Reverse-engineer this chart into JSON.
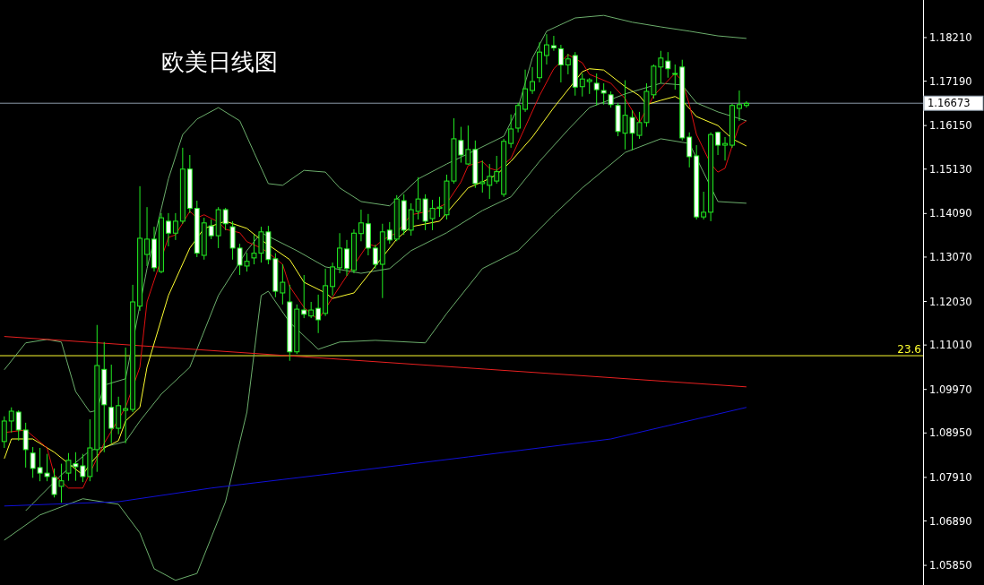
{
  "chart_data": {
    "type": "candlestick",
    "title": "欧美日线图",
    "color": "#22ee22",
    "categories": [
      null,
      null,
      null,
      null,
      null,
      null,
      null,
      null,
      null,
      null,
      null,
      null,
      null,
      null,
      null,
      null,
      null,
      null,
      null,
      null,
      null,
      null,
      null,
      null,
      null,
      null,
      null,
      null,
      null,
      null,
      null,
      null,
      null,
      null,
      null,
      null,
      null,
      null,
      null,
      null,
      null,
      null,
      null,
      null,
      null,
      null,
      null,
      null,
      null,
      null,
      null,
      null,
      null,
      null,
      null,
      null,
      null,
      null,
      null,
      null,
      null,
      null,
      null,
      null,
      null,
      null,
      null,
      null,
      null,
      null,
      null,
      null,
      null,
      null,
      null,
      null,
      null,
      null,
      null,
      null,
      null,
      null,
      null,
      null,
      null,
      null,
      null,
      null,
      null,
      null,
      null,
      null,
      null,
      null,
      null,
      null,
      null,
      null,
      null,
      null,
      null,
      null,
      null,
      null,
      null
    ],
    "ohlc": [
      [
        1.0875,
        1.0934,
        1.086,
        1.0923
      ],
      [
        1.0923,
        1.0955,
        1.0896,
        1.0946
      ],
      [
        1.0944,
        1.0948,
        1.0877,
        1.0902
      ],
      [
        1.0902,
        1.0919,
        1.0814,
        1.0856
      ],
      [
        1.0848,
        1.0862,
        1.079,
        1.0812
      ],
      [
        1.0814,
        1.086,
        1.0782,
        1.0801
      ],
      [
        1.0801,
        1.0846,
        1.0782,
        1.0793
      ],
      [
        1.0791,
        1.0812,
        1.0744,
        1.0751
      ],
      [
        1.077,
        1.0823,
        1.0732,
        1.0783
      ],
      [
        1.0801,
        1.0848,
        1.0783,
        1.0831
      ],
      [
        1.0823,
        1.085,
        1.0783,
        1.0816
      ],
      [
        1.0818,
        1.0846,
        1.078,
        1.0793
      ],
      [
        1.0793,
        1.0927,
        1.0782,
        1.086
      ],
      [
        1.0856,
        1.1148,
        1.0804,
        1.1053
      ],
      [
        1.1044,
        1.1108,
        1.085,
        1.0961
      ],
      [
        1.0955,
        1.1055,
        1.0871,
        1.0906
      ],
      [
        1.0906,
        1.098,
        1.0892,
        1.0959
      ],
      [
        1.0948,
        1.1095,
        1.0871,
        1.0952
      ],
      [
        1.095,
        1.1242,
        1.0944,
        1.1202
      ],
      [
        1.1192,
        1.1473,
        1.1181,
        1.1351
      ],
      [
        1.1313,
        1.1424,
        1.1286,
        1.1349
      ],
      [
        1.1349,
        1.1378,
        1.1273,
        1.1282
      ],
      [
        1.1273,
        1.141,
        1.1269,
        1.1399
      ],
      [
        1.1391,
        1.141,
        1.1332,
        1.1363
      ],
      [
        1.1363,
        1.141,
        1.1347,
        1.1391
      ],
      [
        1.1391,
        1.1563,
        1.1385,
        1.1513
      ],
      [
        1.1513,
        1.1546,
        1.141,
        1.1421
      ],
      [
        1.1421,
        1.1439,
        1.1307,
        1.1316
      ],
      [
        1.1311,
        1.1399,
        1.1301,
        1.1387
      ],
      [
        1.138,
        1.1395,
        1.1349,
        1.1357
      ],
      [
        1.1357,
        1.1424,
        1.1328,
        1.1418
      ],
      [
        1.1418,
        1.1422,
        1.137,
        1.1385
      ],
      [
        1.1378,
        1.1391,
        1.1301,
        1.1328
      ],
      [
        1.1328,
        1.1338,
        1.1265,
        1.1288
      ],
      [
        1.1286,
        1.1317,
        1.1273,
        1.1297
      ],
      [
        1.1305,
        1.1359,
        1.129,
        1.1316
      ],
      [
        1.1316,
        1.1378,
        1.1294,
        1.1366
      ],
      [
        1.1366,
        1.138,
        1.129,
        1.1301
      ],
      [
        1.1303,
        1.1316,
        1.1213,
        1.1227
      ],
      [
        1.1223,
        1.129,
        1.1196,
        1.1248
      ],
      [
        1.1202,
        1.1242,
        1.1064,
        1.1085
      ],
      [
        1.1085,
        1.1196,
        1.108,
        1.1185
      ],
      [
        1.1183,
        1.1265,
        1.1164,
        1.1173
      ],
      [
        1.1169,
        1.1202,
        1.1164,
        1.1183
      ],
      [
        1.1187,
        1.1219,
        1.1129,
        1.116
      ],
      [
        1.1175,
        1.128,
        1.1169,
        1.124
      ],
      [
        1.1238,
        1.1294,
        1.1217,
        1.1284
      ],
      [
        1.1282,
        1.1363,
        1.1269,
        1.1328
      ],
      [
        1.1326,
        1.1347,
        1.1263,
        1.128
      ],
      [
        1.1276,
        1.1372,
        1.1269,
        1.1363
      ],
      [
        1.1362,
        1.1418,
        1.1344,
        1.1387
      ],
      [
        1.1385,
        1.1408,
        1.1311,
        1.1328
      ],
      [
        1.1328,
        1.1336,
        1.128,
        1.129
      ],
      [
        1.129,
        1.1385,
        1.1211,
        1.1366
      ],
      [
        1.137,
        1.1389,
        1.1338,
        1.1347
      ],
      [
        1.1349,
        1.1452,
        1.1344,
        1.1443
      ],
      [
        1.1439,
        1.1454,
        1.1359,
        1.137
      ],
      [
        1.137,
        1.1433,
        1.1357,
        1.1418
      ],
      [
        1.1414,
        1.1494,
        1.1395,
        1.1443
      ],
      [
        1.1443,
        1.1454,
        1.137,
        1.1391
      ],
      [
        1.1397,
        1.1441,
        1.137,
        1.1421
      ],
      [
        1.1421,
        1.1448,
        1.1401,
        1.1424
      ],
      [
        1.1406,
        1.15,
        1.1395,
        1.1485
      ],
      [
        1.1485,
        1.1632,
        1.1479,
        1.1584
      ],
      [
        1.158,
        1.1612,
        1.1528,
        1.1546
      ],
      [
        1.1525,
        1.1615,
        1.1523,
        1.1559
      ],
      [
        1.1559,
        1.158,
        1.1469,
        1.1479
      ],
      [
        1.1479,
        1.1533,
        1.1458,
        1.1483
      ],
      [
        1.1475,
        1.1525,
        1.1443,
        1.1496
      ],
      [
        1.1485,
        1.1544,
        1.1479,
        1.1507
      ],
      [
        1.1454,
        1.1584,
        1.1448,
        1.1578
      ],
      [
        1.1573,
        1.1641,
        1.1563,
        1.1607
      ],
      [
        1.1609,
        1.1668,
        1.1599,
        1.1662
      ],
      [
        1.1653,
        1.1746,
        1.1647,
        1.1701
      ],
      [
        1.1697,
        1.1752,
        1.1689,
        1.1718
      ],
      [
        1.1727,
        1.181,
        1.1716,
        1.1787
      ],
      [
        1.1779,
        1.1829,
        1.1758,
        1.1804
      ],
      [
        1.1802,
        1.1825,
        1.179,
        1.1797
      ],
      [
        1.1795,
        1.1804,
        1.1716,
        1.1757
      ],
      [
        1.1757,
        1.1783,
        1.1735,
        1.1771
      ],
      [
        1.1779,
        1.1787,
        1.1685,
        1.1705
      ],
      [
        1.1706,
        1.1737,
        1.1683,
        1.1724
      ],
      [
        1.1718,
        1.1726,
        1.1689,
        1.1722
      ],
      [
        1.1714,
        1.1737,
        1.1662,
        1.1699
      ],
      [
        1.1697,
        1.1714,
        1.1664,
        1.1691
      ],
      [
        1.1687,
        1.1695,
        1.1657,
        1.1664
      ],
      [
        1.1662,
        1.1668,
        1.159,
        1.1601
      ],
      [
        1.1597,
        1.1721,
        1.1559,
        1.1639
      ],
      [
        1.1634,
        1.1651,
        1.1557,
        1.1597
      ],
      [
        1.1592,
        1.1647,
        1.1584,
        1.1622
      ],
      [
        1.1622,
        1.1714,
        1.1612,
        1.1695
      ],
      [
        1.1687,
        1.1758,
        1.1678,
        1.1754
      ],
      [
        1.1752,
        1.179,
        1.1714,
        1.1773
      ],
      [
        1.1766,
        1.1787,
        1.1727,
        1.1748
      ],
      [
        1.1737,
        1.1758,
        1.1699,
        1.1735
      ],
      [
        1.1752,
        1.1769,
        1.158,
        1.1586
      ],
      [
        1.1588,
        1.1599,
        1.1517,
        1.1542
      ],
      [
        1.1544,
        1.1569,
        1.1395,
        1.1401
      ],
      [
        1.1401,
        1.146,
        1.1395,
        1.1412
      ],
      [
        1.1412,
        1.1599,
        1.1391,
        1.1594
      ],
      [
        1.1599,
        1.1601,
        1.1546,
        1.1569
      ],
      [
        1.1569,
        1.1588,
        1.1533,
        1.1573
      ],
      [
        1.1569,
        1.1666,
        1.1563,
        1.1662
      ],
      [
        1.1655,
        1.1697,
        1.1626,
        1.1664
      ],
      [
        1.1662,
        1.1672,
        1.1657,
        1.1667
      ]
    ],
    "series": [
      {
        "type": "line",
        "color": "#6cae6c",
        "values": [
          1.1043,
          null,
          null,
          1.1106,
          null,
          null,
          1.1114,
          null,
          1.1108,
          null,
          1.0992,
          null,
          1.0944,
          1.0948,
          1.1007,
          null,
          null,
          1.1022,
          null,
          null,
          1.128,
          null,
          null,
          1.149,
          null,
          1.1594,
          null,
          1.163,
          null,
          null,
          1.1657,
          null,
          null,
          1.1626,
          null,
          1.1552,
          null,
          1.1479,
          null,
          1.1475,
          null,
          null,
          1.151,
          null,
          null,
          1.1506,
          null,
          1.1469,
          null,
          null,
          1.1437,
          null,
          null,
          null,
          1.1427,
          null,
          null,
          null,
          1.149,
          null,
          null,
          null,
          1.1525,
          null,
          null,
          null,
          1.1557,
          null,
          null,
          null,
          1.159,
          null,
          1.1657,
          null,
          1.1773,
          null,
          1.1836,
          null,
          null,
          null,
          1.1867,
          null,
          null,
          null,
          1.1873,
          null,
          null,
          null,
          1.1857,
          null,
          null,
          null,
          1.1846,
          null,
          null,
          null,
          1.1836,
          null,
          null,
          null,
          1.1825,
          null,
          null,
          null,
          1.1819
        ]
      },
      {
        "type": "line",
        "color": "#6cae6c",
        "values": [
          null,
          null,
          null,
          1.0713,
          null,
          null,
          null,
          null,
          1.0797,
          null,
          null,
          null,
          1.0854,
          null,
          null,
          null,
          null,
          1.0875,
          null,
          1.0923,
          null,
          null,
          1.0986,
          null,
          null,
          null,
          1.1049,
          null,
          null,
          null,
          1.1217,
          null,
          null,
          null,
          1.1322,
          null,
          1.1364,
          null,
          null,
          null,
          null,
          1.1322,
          null,
          null,
          null,
          1.1284,
          null,
          null,
          null,
          null,
          1.1269,
          null,
          null,
          null,
          1.128,
          null,
          null,
          1.1322,
          null,
          null,
          null,
          null,
          1.1364,
          null,
          null,
          null,
          null,
          1.1416,
          null,
          null,
          null,
          1.1448,
          null,
          null,
          null,
          1.1531,
          null,
          null,
          null,
          1.1605,
          null,
          null,
          1.1657,
          null,
          null,
          null,
          null,
          1.1689,
          null,
          null,
          null,
          null,
          1.1714,
          null,
          null,
          1.171,
          null,
          1.1668,
          null,
          null,
          1.1647,
          null,
          null,
          null,
          1.1626
        ]
      },
      {
        "type": "line",
        "color": "#6cae6c",
        "values": [
          1.0644,
          null,
          null,
          null,
          null,
          1.0703,
          null,
          null,
          null,
          null,
          null,
          1.0741,
          null,
          null,
          null,
          null,
          1.0728,
          null,
          null,
          1.0661,
          null,
          1.0577,
          null,
          null,
          1.055,
          null,
          null,
          1.0566,
          null,
          null,
          null,
          1.0734,
          null,
          null,
          1.0944,
          null,
          1.1217,
          1.1227,
          null,
          null,
          1.1154,
          null,
          null,
          null,
          1.1091,
          null,
          null,
          1.1108,
          null,
          null,
          null,
          null,
          1.1112,
          null,
          null,
          null,
          null,
          null,
          null,
          1.1106,
          null,
          null,
          1.1175,
          null,
          null,
          null,
          null,
          1.128,
          null,
          null,
          null,
          null,
          1.1322,
          null,
          null,
          null,
          null,
          1.1406,
          null,
          null,
          null,
          1.1469,
          null,
          null,
          null,
          null,
          null,
          1.1552,
          null,
          null,
          null,
          null,
          1.1584,
          null,
          null,
          null,
          1.1573,
          null,
          null,
          null,
          1.1437,
          null,
          null,
          null,
          1.1433
        ]
      },
      {
        "type": "line",
        "color": "#1010d8",
        "values": [
          1.0724,
          null,
          null,
          null,
          null,
          null,
          null,
          null,
          null,
          null,
          null,
          null,
          null,
          null,
          null,
          null,
          1.0734,
          null,
          null,
          null,
          null,
          null,
          null,
          null,
          null,
          null,
          null,
          null,
          null,
          1.0766,
          null,
          null,
          null,
          null,
          null,
          null,
          null,
          null,
          null,
          null,
          null,
          null,
          null,
          null,
          null,
          null,
          null,
          null,
          null,
          null,
          1.0808,
          null,
          null,
          null,
          null,
          null,
          null,
          null,
          null,
          null,
          null,
          null,
          null,
          null,
          null,
          1.0839,
          null,
          null,
          null,
          null,
          null,
          null,
          null,
          null,
          null,
          null,
          null,
          null,
          null,
          null,
          null,
          null,
          null,
          null,
          null,
          1.0881,
          null,
          null,
          null,
          null,
          null,
          null,
          null,
          null,
          null,
          null,
          null,
          null,
          null,
          null,
          null,
          null,
          null,
          null,
          1.0955
        ]
      },
      {
        "type": "line",
        "color": "#e82020",
        "values": [
          1.1121,
          null,
          null,
          null,
          null,
          null,
          null,
          null,
          null,
          null,
          null,
          null,
          null,
          null,
          null,
          null,
          null,
          null,
          null,
          null,
          null,
          null,
          null,
          null,
          null,
          null,
          null,
          null,
          null,
          null,
          null,
          null,
          null,
          null,
          null,
          null,
          null,
          null,
          null,
          null,
          null,
          null,
          null,
          null,
          null,
          null,
          null,
          null,
          null,
          null,
          null,
          null,
          null,
          null,
          null,
          null,
          null,
          null,
          null,
          null,
          null,
          null,
          null,
          null,
          null,
          null,
          null,
          null,
          null,
          null,
          null,
          null,
          null,
          null,
          null,
          null,
          null,
          null,
          null,
          null,
          null,
          null,
          null,
          null,
          null,
          null,
          null,
          null,
          null,
          null,
          null,
          null,
          null,
          null,
          null,
          null,
          null,
          null,
          null,
          null,
          null,
          null,
          null,
          null,
          1.1003
        ]
      },
      {
        "type": "line",
        "color": "#ffff30",
        "values": [
          1.0835,
          1.0881,
          null,
          null,
          1.0881,
          null,
          null,
          1.085,
          null,
          null,
          null,
          1.0797,
          1.0822,
          null,
          1.086,
          null,
          1.0877,
          1.0923,
          null,
          1.0955,
          1.1049,
          null,
          null,
          1.1217,
          null,
          null,
          1.1328,
          null,
          1.1374,
          null,
          1.1385,
          1.1391,
          null,
          null,
          1.1374,
          null,
          1.1347,
          null,
          null,
          null,
          1.1301,
          null,
          1.1248,
          null,
          null,
          1.1223,
          1.121,
          null,
          null,
          1.1223,
          null,
          null,
          1.1286,
          null,
          null,
          1.1349,
          null,
          1.1378,
          null,
          null,
          null,
          1.1391,
          null,
          null,
          null,
          1.1469,
          null,
          1.1483,
          null,
          1.15,
          null,
          1.1531,
          null,
          null,
          1.1588,
          null,
          null,
          1.1657,
          null,
          null,
          null,
          1.1741,
          1.1748,
          null,
          1.1745,
          null,
          null,
          1.1706,
          null,
          1.1685,
          1.1664,
          null,
          1.1674,
          null,
          1.1683,
          1.1674,
          null,
          1.1636,
          null,
          null,
          1.1615,
          null,
          1.1584,
          null,
          1.1567
        ]
      },
      {
        "type": "line",
        "color": "#e01010",
        "values": [
          1.0896,
          null,
          null,
          1.0902,
          null,
          null,
          1.086,
          1.0797,
          null,
          1.0766,
          null,
          1.0766,
          null,
          null,
          1.0871,
          null,
          null,
          1.0955,
          null,
          1.1049,
          1.1202,
          null,
          null,
          1.1353,
          1.1359,
          null,
          1.1414,
          1.1399,
          1.1406,
          null,
          1.1389,
          1.1372,
          null,
          1.1364,
          1.1343,
          null,
          1.1328,
          1.1317,
          null,
          1.129,
          1.1238,
          null,
          1.1189,
          null,
          1.116,
          null,
          null,
          1.1238,
          null,
          null,
          null,
          1.1338,
          1.1332,
          1.1347,
          null,
          1.1364,
          null,
          1.1406,
          null,
          null,
          1.1416,
          null,
          1.1433,
          null,
          1.1483,
          1.1521,
          null,
          1.1531,
          1.1515,
          1.151,
          null,
          1.1538,
          null,
          null,
          null,
          1.1685,
          null,
          1.1748,
          null,
          1.1781,
          null,
          1.1762,
          1.1735,
          null,
          null,
          1.1714,
          null,
          1.1678,
          null,
          1.1622,
          null,
          1.1685,
          null,
          1.172,
          1.1737,
          1.172,
          1.1664,
          1.1594,
          null,
          1.1525,
          1.1506,
          1.1515,
          1.1567,
          1.1615,
          1.1626
        ]
      }
    ],
    "annotations": [
      {
        "text": "23.6",
        "y": 1.1076
      }
    ],
    "ref_lines": [
      {
        "axis": "y",
        "value": 1.1076,
        "color": "#ffff30"
      },
      {
        "axis": "y",
        "value": 1.16673,
        "label": "1.16673",
        "color": "#8c9aa8"
      }
    ],
    "ylim": [
      1.0539,
      1.1909
    ],
    "yticks": [
      {
        "value": 1.1821,
        "label": "1.18210"
      },
      {
        "value": 1.1719,
        "label": "1.17190"
      },
      {
        "value": 1.1615,
        "label": "1.16150"
      },
      {
        "value": 1.1513,
        "label": "1.15130"
      },
      {
        "value": 1.1409,
        "label": "1.14090"
      },
      {
        "value": 1.1307,
        "label": "1.13070"
      },
      {
        "value": 1.1203,
        "label": "1.12030"
      },
      {
        "value": 1.1101,
        "label": "1.11010"
      },
      {
        "value": 1.0997,
        "label": "1.09970"
      },
      {
        "value": 1.0895,
        "label": "1.08950"
      },
      {
        "value": 1.0791,
        "label": "1.07910"
      },
      {
        "value": 1.0689,
        "label": "1.06890"
      },
      {
        "value": 1.0585,
        "label": "1.05850"
      }
    ],
    "tick_labels": "y"
  }
}
